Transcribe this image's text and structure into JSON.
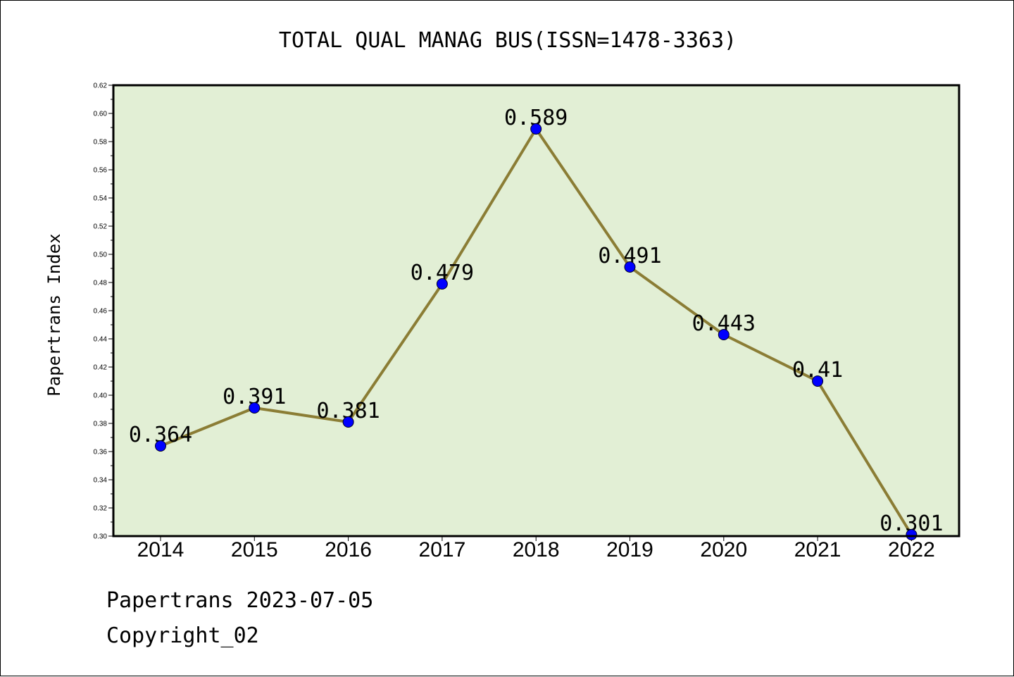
{
  "chart_data": {
    "type": "line",
    "title": "TOTAL QUAL MANAG BUS(ISSN=1478-3363)",
    "xlabel": "",
    "ylabel": "Papertrans Index",
    "categories": [
      "2014",
      "2015",
      "2016",
      "2017",
      "2018",
      "2019",
      "2020",
      "2021",
      "2022"
    ],
    "series": [
      {
        "values": [
          0.364,
          0.391,
          0.381,
          0.479,
          0.589,
          0.491,
          0.443,
          0.41,
          0.301
        ],
        "labels": [
          "0.364",
          "0.391",
          "0.381",
          "0.479",
          "0.589",
          "0.491",
          "0.443",
          "0.41",
          "0.301"
        ]
      }
    ],
    "ylim": [
      0.3,
      0.62
    ],
    "yticks": [
      "0.30",
      "0.32",
      "0.34",
      "0.36",
      "0.38",
      "0.40",
      "0.42",
      "0.44",
      "0.46",
      "0.48",
      "0.50",
      "0.52",
      "0.54",
      "0.56",
      "0.58",
      "0.60",
      "0.62"
    ],
    "grid": false,
    "legend": "none",
    "colors": {
      "plot_background": "#e2efd5",
      "line": "#8b7d35",
      "marker": "#0000ff",
      "frame": "#000000"
    }
  },
  "footer": {
    "line1": "Papertrans 2023-07-05",
    "line2": "Copyright_02"
  }
}
